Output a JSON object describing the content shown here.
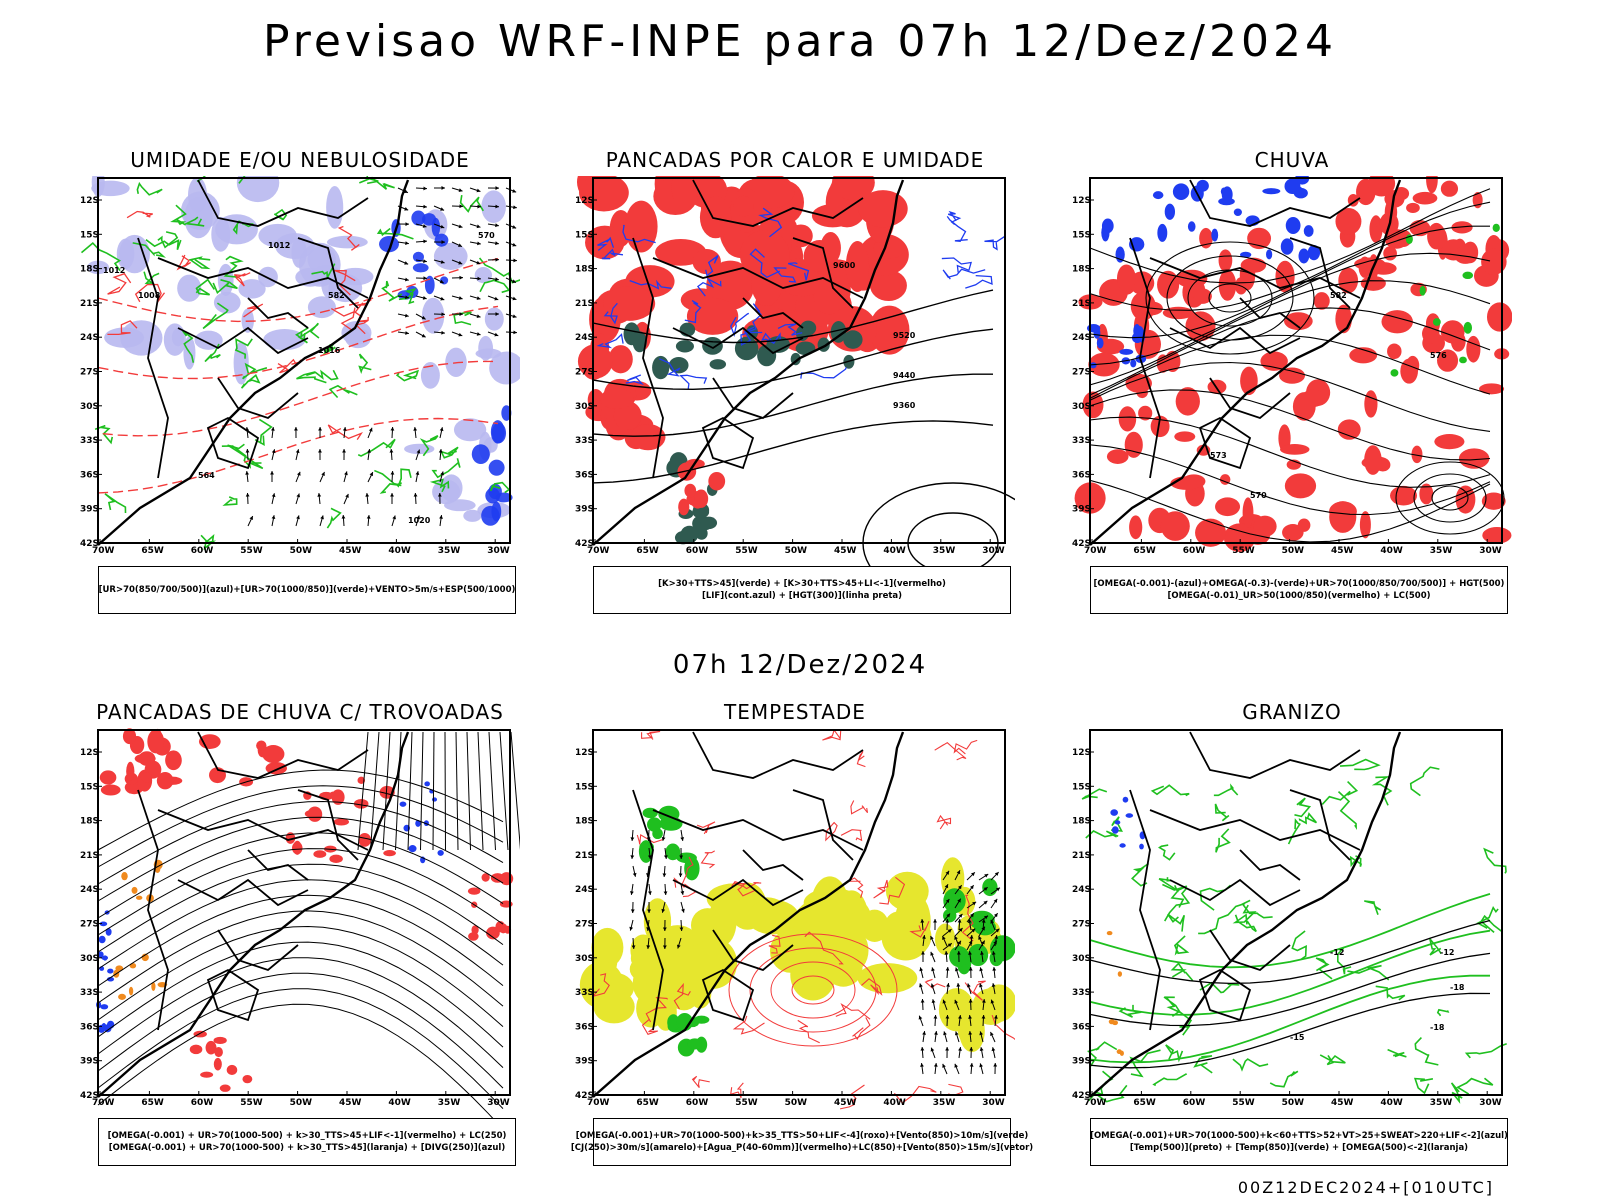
{
  "main_title": "Previsao WRF-INPE  para 07h 12/Dez/2024",
  "sub_title": "07h 12/Dez/2024",
  "footer": "00Z12DEC2024+[010UTC]",
  "axes": {
    "lat_labels": [
      "12S",
      "15S",
      "18S",
      "21S",
      "24S",
      "27S",
      "30S",
      "33S",
      "36S",
      "39S",
      "42S"
    ],
    "lon_labels": [
      "70W",
      "65W",
      "60W",
      "55W",
      "50W",
      "45W",
      "40W",
      "35W",
      "30W"
    ]
  },
  "panels": [
    {
      "id": "umidade",
      "title": "UMIDADE E/OU NEBULOSIDADE",
      "legend": [
        "[UR>70(850/700/500)](azul)+[UR>70(1000/850)](verde)+VENTO>5m/s+ESP(500/1000)"
      ],
      "labels": [
        {
          "text": "1012"
        },
        {
          "text": "1012"
        },
        {
          "text": "1008"
        },
        {
          "text": "1016"
        },
        {
          "text": "1020"
        },
        {
          "text": "570"
        },
        {
          "text": "582"
        },
        {
          "text": "564"
        }
      ]
    },
    {
      "id": "pancadas_calor",
      "title": "PANCADAS POR CALOR E UMIDADE",
      "legend": [
        "[K>30+TTS>45](verde) + [K>30+TTS>45+LI<-1](vermelho)",
        "[LIF](cont.azul) + [HGT(300)](linha preta)"
      ],
      "labels": [
        {
          "text": "9600"
        },
        {
          "text": "9520"
        },
        {
          "text": "9440"
        },
        {
          "text": "9360"
        }
      ]
    },
    {
      "id": "chuva",
      "title": "CHUVA",
      "legend": [
        "[OMEGA(-0.001)-(azul)+OMEGA(-0.3)-(verde)+UR>70(1000/850/700/500)] + HGT(500)",
        "[OMEGA(-0.01)_UR>50(1000/850)(vermelho) + LC(500)"
      ],
      "labels": [
        {
          "text": "582"
        },
        {
          "text": "576"
        },
        {
          "text": "573"
        },
        {
          "text": "570"
        }
      ]
    },
    {
      "id": "trovoadas",
      "title": "PANCADAS DE CHUVA C/ TROVOADAS",
      "legend": [
        "[OMEGA(-0.001) + UR>70(1000-500) + k>30_TTS>45+LIF<-1](vermelho) + LC(250)",
        "[OMEGA(-0.001) + UR>70(1000-500) + k>30_TTS>45](laranja) + [DIVG(250)](azul)"
      ],
      "labels": []
    },
    {
      "id": "tempestade",
      "title": "TEMPESTADE",
      "legend": [
        "[OMEGA(-0.001)+UR>70(1000-500)+k>35_TTS>50+LIF<-4](roxo)+[Vento(850)>10m/s](verde)",
        "[CJ(250)>30m/s](amarelo)+[Agua_P(40-60mm)](vermelho)+LC(850)+[Vento(850)>15m/s](vetor)"
      ],
      "labels": []
    },
    {
      "id": "granizo",
      "title": "GRANIZO",
      "legend": [
        "[OMEGA(-0.001)+UR>70(1000-500)+k<60+TTS>52+VT>25+SWEAT>220+LIF<-2](azul)",
        "[Temp(500)](preto) + [Temp(850)](verde) + [OMEGA(500)<-2](laranja)"
      ],
      "labels": [
        {
          "text": "-12"
        },
        {
          "text": "-15"
        },
        {
          "text": "-18"
        },
        {
          "text": "-12"
        },
        {
          "text": "-18"
        }
      ]
    }
  ],
  "colors": {
    "red": "#f23b3b",
    "green": "#1fbf1f",
    "blue": "#1f3cf0",
    "lavender": "#b8b8f0",
    "darkgreen": "#2f5a50",
    "yellow": "#e6e62e",
    "orange": "#f08a1e",
    "black": "#000000"
  }
}
